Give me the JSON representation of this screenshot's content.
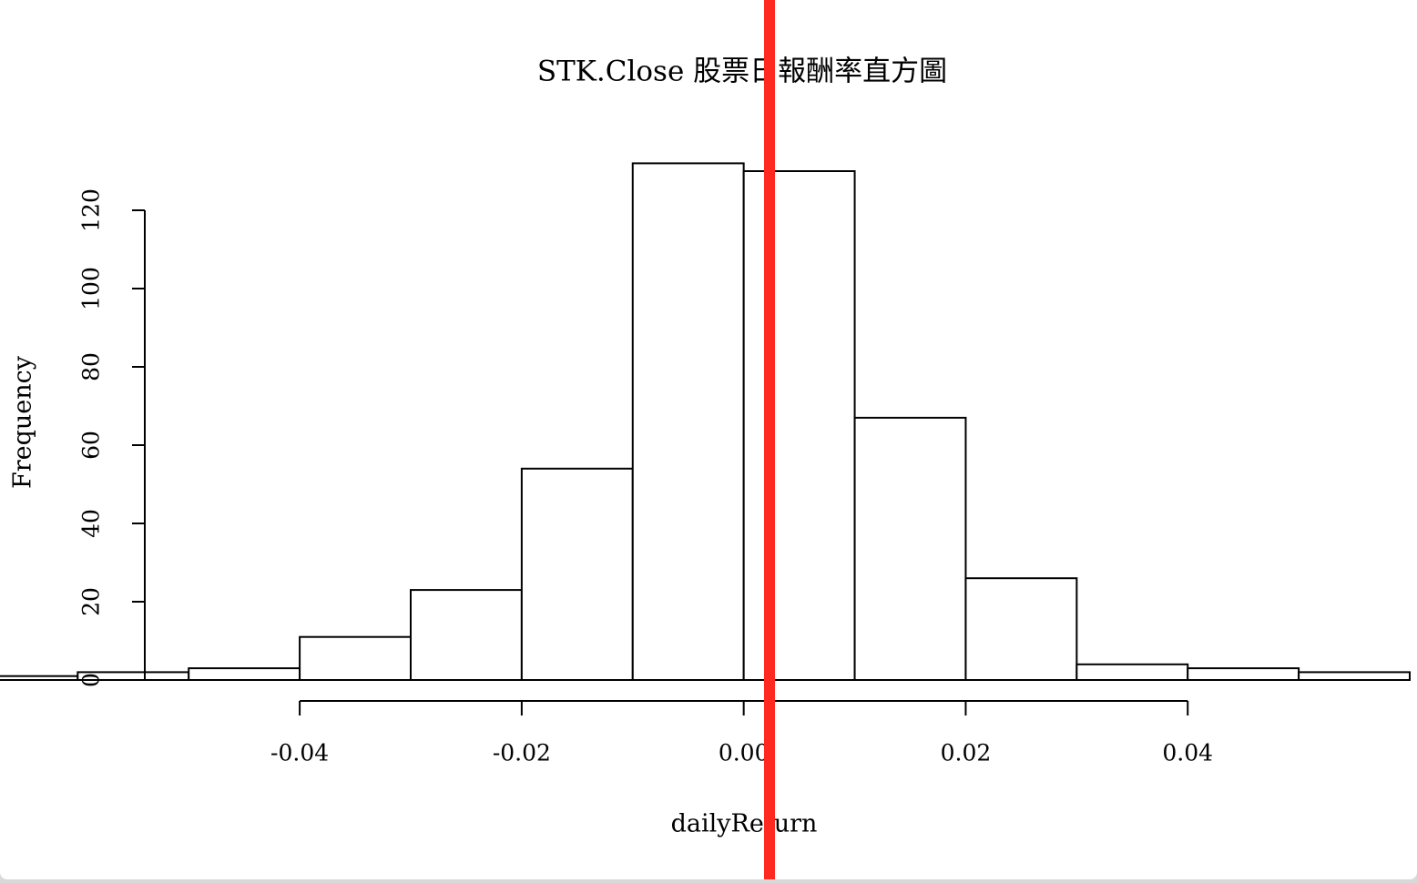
{
  "chart_data": {
    "type": "histogram",
    "title": "STK.Close 股票日報酬率直方圖",
    "x_label": "dailyReturn",
    "y_label": "Frequency",
    "bins": [
      -0.07,
      -0.06,
      -0.05,
      -0.04,
      -0.03,
      -0.02,
      -0.01,
      0,
      0.01,
      0.02,
      0.03,
      0.04,
      0.05,
      0.06
    ],
    "values": [
      1,
      2,
      3,
      11,
      23,
      54,
      132,
      130,
      67,
      26,
      4,
      3,
      2
    ],
    "color": "#ffffff",
    "xlim": [
      -0.067,
      0.06
    ],
    "ylim": [
      0,
      132
    ],
    "xticks": [
      -0.04,
      -0.02,
      {
        "value": 0,
        "label": "0.00"
      },
      0.02,
      0.04
    ],
    "yticks": [
      0,
      20,
      40,
      60,
      80,
      100,
      120
    ]
  }
}
